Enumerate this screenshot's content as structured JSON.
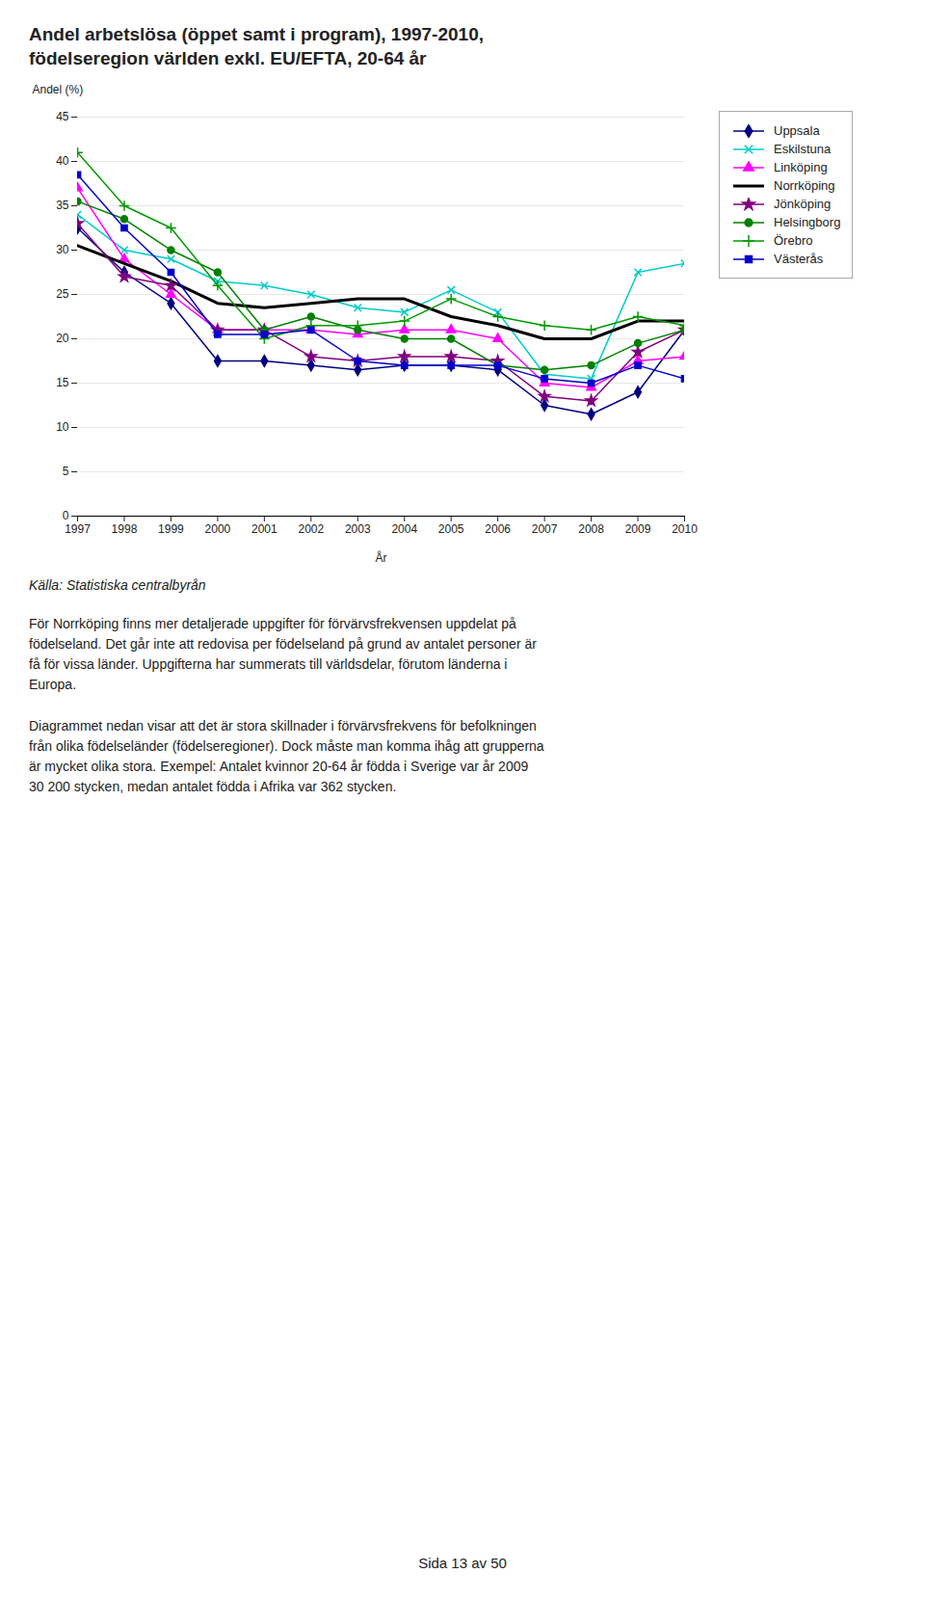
{
  "chart_data": {
    "type": "line",
    "title": "Andel arbetslösa (öppet samt i program), 1997-2010,",
    "subtitle": "födelseregion världen exkl. EU/EFTA, 20-64 år",
    "ylabel": "Andel (%)",
    "xlabel": "År",
    "x": [
      1997,
      1998,
      1999,
      2000,
      2001,
      2002,
      2003,
      2004,
      2005,
      2006,
      2007,
      2008,
      2009,
      2010
    ],
    "series": [
      {
        "name": "Uppsala",
        "color": "#000080",
        "marker": "diamond",
        "values": [
          32.5,
          27.5,
          24.0,
          17.5,
          17.5,
          17.0,
          16.5,
          17.0,
          17.0,
          16.5,
          12.5,
          11.5,
          14.0,
          21.0
        ]
      },
      {
        "name": "Eskilstuna",
        "color": "#00CCCC",
        "marker": "x",
        "values": [
          34.0,
          30.0,
          29.0,
          26.5,
          26.0,
          25.0,
          23.5,
          23.0,
          25.5,
          23.0,
          16.0,
          15.5,
          27.5,
          28.5
        ]
      },
      {
        "name": "Linköping",
        "color": "#FF00FF",
        "marker": "triangle",
        "values": [
          37.0,
          29.0,
          25.0,
          21.0,
          21.0,
          21.0,
          20.5,
          21.0,
          21.0,
          20.0,
          15.0,
          14.5,
          17.5,
          18.0
        ]
      },
      {
        "name": "Norrköping",
        "color": "#000000",
        "marker": "none",
        "values": [
          30.5,
          28.5,
          26.5,
          24.0,
          23.5,
          24.0,
          24.5,
          24.5,
          22.5,
          21.5,
          20.0,
          20.0,
          22.0,
          22.0
        ]
      },
      {
        "name": "Jönköping",
        "color": "#800080",
        "marker": "star",
        "values": [
          33.0,
          27.0,
          26.0,
          21.0,
          21.0,
          18.0,
          17.5,
          18.0,
          18.0,
          17.5,
          13.5,
          13.0,
          18.5,
          21.0
        ]
      },
      {
        "name": "Helsingborg",
        "color": "#008000",
        "marker": "circle",
        "values": [
          35.5,
          33.5,
          30.0,
          27.5,
          21.0,
          22.5,
          21.0,
          20.0,
          20.0,
          17.0,
          16.5,
          17.0,
          19.5,
          21.0
        ]
      },
      {
        "name": "Örebro",
        "color": "#009900",
        "marker": "plus",
        "values": [
          41.0,
          35.0,
          32.5,
          26.0,
          20.0,
          21.5,
          21.5,
          22.0,
          24.5,
          22.5,
          21.5,
          21.0,
          22.5,
          21.5
        ]
      },
      {
        "name": "Västerås",
        "color": "#0000CC",
        "marker": "square",
        "values": [
          38.5,
          32.5,
          27.5,
          20.5,
          20.5,
          21.0,
          17.5,
          17.0,
          17.0,
          17.0,
          15.5,
          15.0,
          17.0,
          15.5
        ]
      }
    ],
    "xlim": [
      1997,
      2010
    ],
    "xticks": [
      1997,
      1998,
      1999,
      2000,
      2001,
      2002,
      2003,
      2004,
      2005,
      2006,
      2007,
      2008,
      2009,
      2010
    ],
    "ylim": [
      0,
      45
    ],
    "yticks": [
      0,
      5,
      10,
      15,
      20,
      25,
      30,
      35,
      40,
      45
    ],
    "grid": true,
    "legend": "right",
    "source": "Källa: Statistiska centralbyrån",
    "notes": [
      "För Norrköping finns mer detaljerade uppgifter för förvärvsfrekvensen uppdelat på\nfödelseland. Det går inte att redovisa per födelseland på grund av antalet personer är\nfå för vissa länder. Uppgifterna har summerats till världsdelar, förutom länderna i\nEuropa.",
      "Diagrammet nedan visar att det är stora skillnader i förvärvsfrekvens för befolkningen\nfrån olika födelseländer (födelseregioner). Dock måste man komma ihåg att grupperna\när mycket olika stora. Exempel: Antalet kvinnor 20-64 år födda i Sverige var år 2009\n30 200 stycken, medan antalet födda i Afrika var 362 stycken."
    ],
    "footer": "Sida 13 av 50"
  }
}
